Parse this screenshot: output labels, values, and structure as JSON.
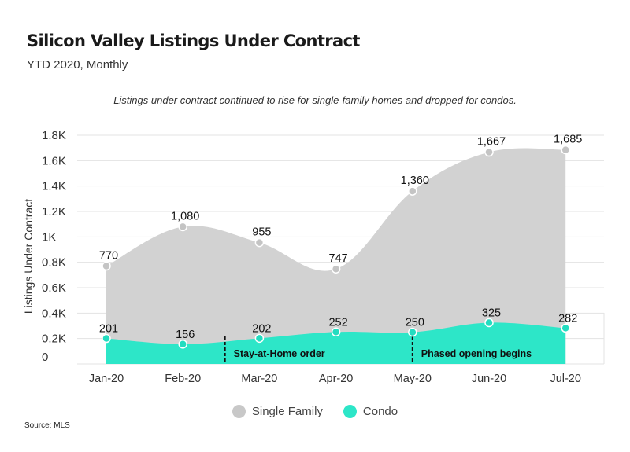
{
  "header": {
    "title": "Silicon Valley Listings Under Contract",
    "subtitle": "YTD 2020, Monthly",
    "annotation": "Listings under contract continued to rise for single-family homes and dropped for condos."
  },
  "footer": {
    "source": "Source: MLS"
  },
  "colors": {
    "single_family": "#d2d2d2",
    "single_family_marker": "#c4c4c4",
    "condo": "#2de6c8",
    "condo_marker": "#23dcc0",
    "grid": "#e3e3e3"
  },
  "chart_data": {
    "type": "area",
    "title": "Silicon Valley Listings Under Contract",
    "subtitle": "YTD 2020, Monthly",
    "xlabel": "",
    "ylabel": "Listings Under Contract",
    "categories": [
      "Jan-20",
      "Feb-20",
      "Mar-20",
      "Apr-20",
      "May-20",
      "Jun-20",
      "Jul-20"
    ],
    "ylim": [
      0,
      1800
    ],
    "yticks": [
      0,
      200,
      400,
      600,
      800,
      1000,
      1200,
      1400,
      1600,
      1800
    ],
    "ytick_labels": [
      "0",
      "0.2K",
      "0.4K",
      "0.6K",
      "0.8K",
      "1K",
      "1.2K",
      "1.4K",
      "1.6K",
      "1.8K"
    ],
    "grid": true,
    "legend": "bottom-center",
    "series": [
      {
        "name": "Single Family",
        "values": [
          770,
          1080,
          955,
          747,
          1360,
          1667,
          1685
        ],
        "labels": [
          "770",
          "1,080",
          "955",
          "747",
          "1,360",
          "1,667",
          "1,685"
        ]
      },
      {
        "name": "Condo",
        "values": [
          201,
          156,
          202,
          252,
          250,
          325,
          282
        ],
        "labels": [
          "201",
          "156",
          "202",
          "252",
          "250",
          "325",
          "282"
        ]
      }
    ],
    "events": [
      {
        "label": "Stay-at-Home order",
        "x": 1.55
      },
      {
        "label": "Phased opening begins",
        "x": 4.0
      }
    ]
  }
}
